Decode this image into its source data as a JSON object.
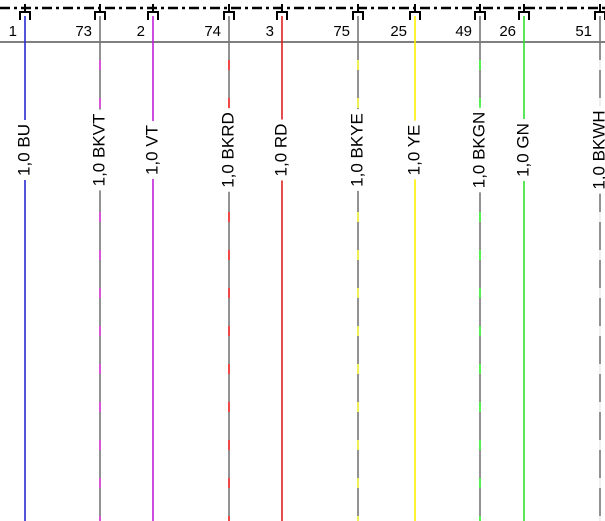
{
  "wires": [
    {
      "pin": "1",
      "label": "1,0 BU"
    },
    {
      "pin": "73",
      "label": "1,0 BKVT"
    },
    {
      "pin": "2",
      "label": "1,0 VT"
    },
    {
      "pin": "74",
      "label": "1,0 BKRD"
    },
    {
      "pin": "3",
      "label": "1,0 RD"
    },
    {
      "pin": "75",
      "label": "1,0 BKYE"
    },
    {
      "pin": "25",
      "label": "1,0 YE"
    },
    {
      "pin": "49",
      "label": "1,0 BKGN"
    },
    {
      "pin": "26",
      "label": "1,0 GN"
    },
    {
      "pin": "51",
      "label": "1,0 BKWH"
    }
  ]
}
